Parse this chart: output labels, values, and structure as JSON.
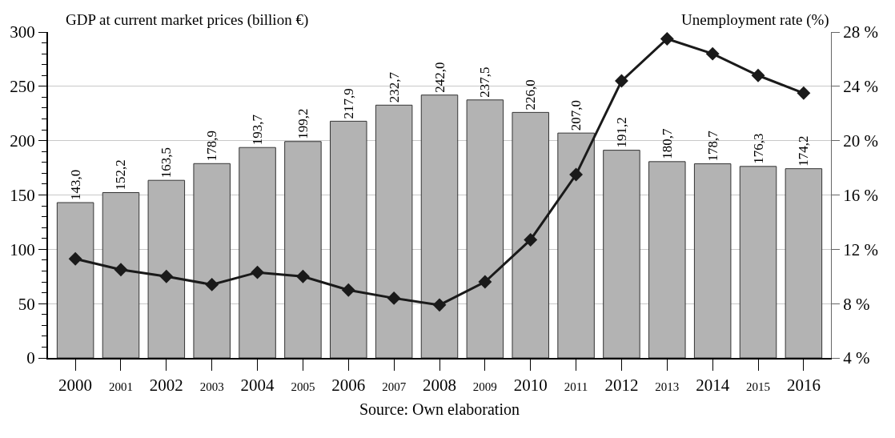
{
  "chart_data": {
    "type": "bar",
    "ylabel": "GDP at current market prices (billion €)",
    "y2label": "Unemployment rate (%)",
    "categories": [
      "2000",
      "2001",
      "2002",
      "2003",
      "2004",
      "2005",
      "2006",
      "2007",
      "2008",
      "2009",
      "2010",
      "2011",
      "2012",
      "2013",
      "2014",
      "2015",
      "2016"
    ],
    "series": [
      {
        "color": "#b3b3b3",
        "values": [
          143.0,
          152.2,
          163.5,
          178.9,
          193.7,
          199.2,
          217.9,
          232.7,
          242.0,
          237.5,
          226.0,
          207.0,
          191.2,
          180.7,
          178.7,
          176.3,
          174.2
        ],
        "value_labels": [
          "143,0",
          "152,2",
          "163,5",
          "178,9",
          "193,7",
          "199,2",
          "217,9",
          "232,7",
          "242,0",
          "237,5",
          "226,0",
          "207,0",
          "191,2",
          "180,7",
          "178,7",
          "176,3",
          "174,2"
        ]
      },
      {
        "type": "line",
        "axis": "y2",
        "color": "#1a1a1a",
        "marker": "diamond",
        "line_style": "solid",
        "values": [
          11.3,
          10.5,
          10.0,
          9.4,
          10.3,
          10.0,
          9.0,
          8.4,
          7.9,
          9.6,
          12.7,
          17.5,
          24.4,
          27.5,
          26.4,
          24.8,
          23.5
        ]
      }
    ],
    "ylim": [
      0,
      300
    ],
    "yticks": [
      0,
      50,
      100,
      150,
      200,
      250,
      300
    ],
    "y2lim": [
      4,
      28
    ],
    "y2ticks": [
      {
        "value": 4,
        "label": "4 %"
      },
      {
        "value": 8,
        "label": "8 %"
      },
      {
        "value": 12,
        "label": "12 %"
      },
      {
        "value": 16,
        "label": "16 %"
      },
      {
        "value": 20,
        "label": "20 %"
      },
      {
        "value": 24,
        "label": "24 %"
      },
      {
        "value": 28,
        "label": "28 %"
      }
    ],
    "grid": "y",
    "annotations": [
      "Source: Own elaboration"
    ]
  }
}
